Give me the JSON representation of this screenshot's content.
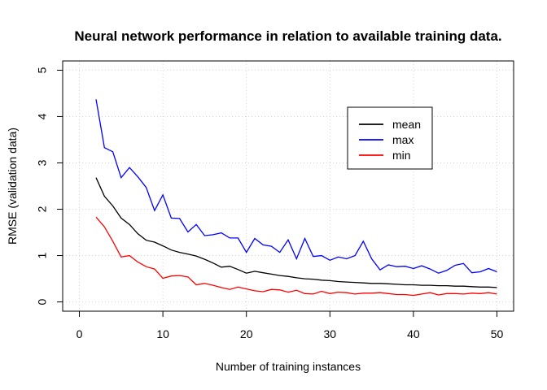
{
  "chart_data": {
    "type": "line",
    "title": "Neural network performance in relation to available training data.",
    "xlabel": "Number of training instances",
    "ylabel": "RMSE (validation data)",
    "xlim": [
      -2,
      52
    ],
    "ylim": [
      -0.2,
      5.2
    ],
    "xticks": [
      0,
      10,
      20,
      30,
      40,
      50
    ],
    "yticks": [
      0,
      1,
      2,
      3,
      4,
      5
    ],
    "grid": true,
    "legend_position": "top-right",
    "x": [
      2,
      3,
      4,
      5,
      6,
      7,
      8,
      9,
      10,
      11,
      12,
      13,
      14,
      15,
      16,
      17,
      18,
      19,
      20,
      21,
      22,
      23,
      24,
      25,
      26,
      27,
      28,
      29,
      30,
      31,
      32,
      33,
      34,
      35,
      36,
      37,
      38,
      39,
      40,
      41,
      42,
      43,
      44,
      45,
      46,
      47,
      48,
      49,
      50
    ],
    "series": [
      {
        "name": "mean",
        "color": "#000000",
        "values": [
          2.68,
          2.28,
          2.07,
          1.81,
          1.67,
          1.47,
          1.33,
          1.29,
          1.21,
          1.12,
          1.07,
          1.03,
          0.99,
          0.92,
          0.84,
          0.75,
          0.77,
          0.7,
          0.62,
          0.66,
          0.63,
          0.6,
          0.57,
          0.55,
          0.52,
          0.5,
          0.49,
          0.47,
          0.46,
          0.44,
          0.43,
          0.42,
          0.41,
          0.4,
          0.4,
          0.39,
          0.38,
          0.37,
          0.37,
          0.36,
          0.36,
          0.35,
          0.35,
          0.34,
          0.34,
          0.33,
          0.32,
          0.32,
          0.31
        ]
      },
      {
        "name": "max",
        "color": "#0000ff",
        "values": [
          4.37,
          3.33,
          3.24,
          2.68,
          2.9,
          2.7,
          2.47,
          1.97,
          2.31,
          1.81,
          1.8,
          1.51,
          1.67,
          1.43,
          1.45,
          1.49,
          1.38,
          1.38,
          1.07,
          1.37,
          1.23,
          1.2,
          1.07,
          1.34,
          0.93,
          1.37,
          0.98,
          1.0,
          0.9,
          0.97,
          0.93,
          1.0,
          1.31,
          0.93,
          0.69,
          0.8,
          0.76,
          0.77,
          0.72,
          0.78,
          0.71,
          0.62,
          0.68,
          0.79,
          0.83,
          0.63,
          0.65,
          0.72,
          0.65
        ]
      },
      {
        "name": "min",
        "color": "#ff0000",
        "values": [
          1.83,
          1.62,
          1.31,
          0.97,
          1.0,
          0.86,
          0.76,
          0.71,
          0.51,
          0.56,
          0.57,
          0.54,
          0.37,
          0.4,
          0.36,
          0.31,
          0.27,
          0.32,
          0.28,
          0.24,
          0.22,
          0.27,
          0.26,
          0.21,
          0.25,
          0.18,
          0.17,
          0.23,
          0.18,
          0.21,
          0.2,
          0.17,
          0.19,
          0.19,
          0.2,
          0.18,
          0.16,
          0.16,
          0.14,
          0.17,
          0.2,
          0.15,
          0.18,
          0.18,
          0.17,
          0.19,
          0.18,
          0.2,
          0.17
        ]
      }
    ]
  }
}
